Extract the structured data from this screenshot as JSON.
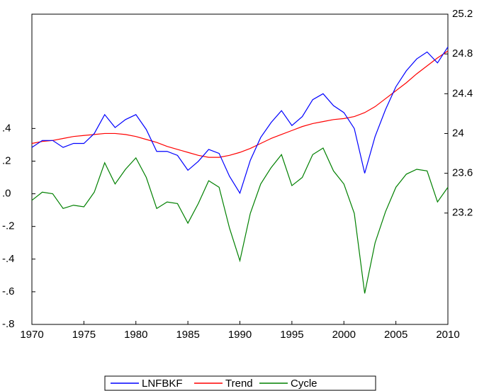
{
  "chart_data": {
    "type": "line",
    "x": [
      1970,
      1971,
      1972,
      1973,
      1974,
      1975,
      1976,
      1977,
      1978,
      1979,
      1980,
      1981,
      1982,
      1983,
      1984,
      1985,
      1986,
      1987,
      1988,
      1989,
      1990,
      1991,
      1992,
      1993,
      1994,
      1995,
      1996,
      1997,
      1998,
      1999,
      2000,
      2001,
      2002,
      2003,
      2004,
      2005,
      2006,
      2007,
      2008,
      2009,
      2010
    ],
    "xlim": [
      1970,
      2010
    ],
    "xticks": [
      1970,
      1975,
      1980,
      1985,
      1990,
      1995,
      2000,
      2005,
      2010
    ],
    "ylim": [
      -0.8,
      1.1
    ],
    "yticks": [
      {
        "value": -0.8,
        "label": "-.8"
      },
      {
        "value": -0.6,
        "label": "-.6"
      },
      {
        "value": -0.4,
        "label": "-.4"
      },
      {
        "value": -0.2,
        "label": "-.2"
      },
      {
        "value": 0,
        "label": ".0"
      },
      {
        "value": 0.2,
        "label": ".2"
      },
      {
        "value": 0.4,
        "label": ".4"
      }
    ],
    "y2lim": [
      22.08,
      25.2
    ],
    "y2ticks": [
      23.2,
      23.6,
      24.0,
      24.4,
      24.8,
      25.2
    ],
    "series": [
      {
        "name": "LNFBKF",
        "color": "#0000ff",
        "axis": "y2",
        "values": [
          23.86,
          23.93,
          23.93,
          23.86,
          23.9,
          23.9,
          24.0,
          24.19,
          24.06,
          24.14,
          24.19,
          24.04,
          23.82,
          23.82,
          23.78,
          23.63,
          23.72,
          23.84,
          23.8,
          23.57,
          23.4,
          23.73,
          23.96,
          24.11,
          24.23,
          24.08,
          24.17,
          24.34,
          24.4,
          24.28,
          24.21,
          24.05,
          23.6,
          23.97,
          24.24,
          24.47,
          24.63,
          24.75,
          24.82,
          24.71,
          24.87
        ]
      },
      {
        "name": "Trend",
        "color": "#ff0000",
        "axis": "y2",
        "values": [
          23.9,
          23.92,
          23.93,
          23.95,
          23.97,
          23.98,
          23.99,
          24.0,
          24.0,
          23.99,
          23.97,
          23.94,
          23.91,
          23.87,
          23.84,
          23.81,
          23.78,
          23.76,
          23.76,
          23.78,
          23.81,
          23.85,
          23.9,
          23.95,
          23.99,
          24.03,
          24.07,
          24.1,
          24.12,
          24.14,
          24.15,
          24.17,
          24.21,
          24.27,
          24.35,
          24.43,
          24.51,
          24.6,
          24.68,
          24.76,
          24.83
        ]
      },
      {
        "name": "Cycle",
        "color": "#008000",
        "values": [
          -0.04,
          0.01,
          0.0,
          -0.09,
          -0.07,
          -0.08,
          0.01,
          0.19,
          0.06,
          0.15,
          0.22,
          0.1,
          -0.09,
          -0.05,
          -0.06,
          -0.18,
          -0.06,
          0.08,
          0.04,
          -0.21,
          -0.41,
          -0.12,
          0.06,
          0.16,
          0.24,
          0.05,
          0.1,
          0.24,
          0.28,
          0.14,
          0.06,
          -0.12,
          -0.61,
          -0.3,
          -0.11,
          0.04,
          0.12,
          0.15,
          0.14,
          -0.05,
          0.04
        ]
      }
    ]
  }
}
